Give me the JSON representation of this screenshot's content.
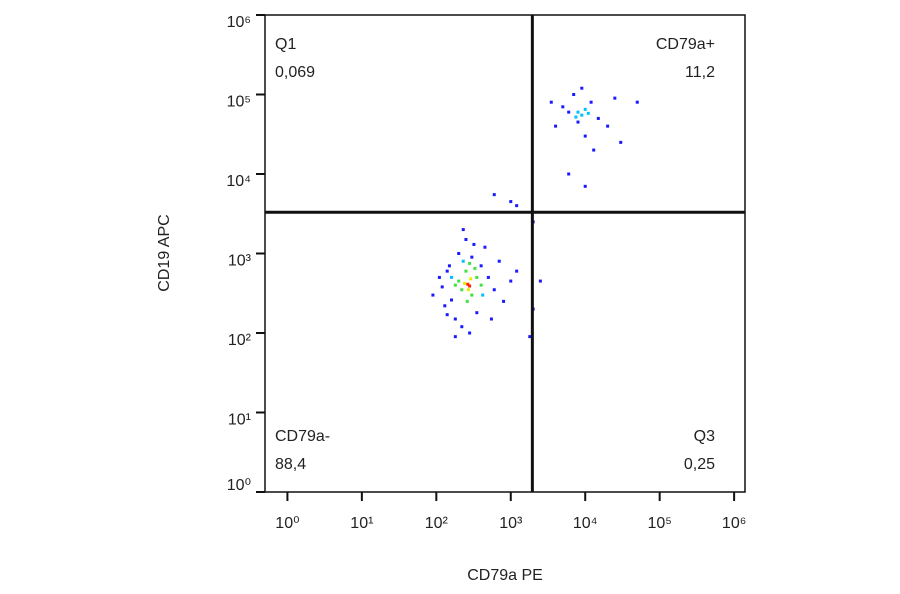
{
  "chart_data": {
    "type": "scatter",
    "xlabel": "CD79a PE",
    "ylabel": "CD19 APC",
    "xscale": "log",
    "yscale": "log",
    "xlim": [
      0.5,
      1400000
    ],
    "ylim": [
      1,
      1000000
    ],
    "xticks": [
      {
        "value": 1,
        "label": "10⁰"
      },
      {
        "value": 10,
        "label": "10¹"
      },
      {
        "value": 100,
        "label": "10²"
      },
      {
        "value": 1000,
        "label": "10³"
      },
      {
        "value": 10000,
        "label": "10⁴"
      },
      {
        "value": 100000,
        "label": "10⁵"
      },
      {
        "value": 1000000,
        "label": "10⁶"
      }
    ],
    "yticks": [
      {
        "value": 1,
        "label": "10⁰"
      },
      {
        "value": 10,
        "label": "10¹"
      },
      {
        "value": 100,
        "label": "10²"
      },
      {
        "value": 1000,
        "label": "10³"
      },
      {
        "value": 10000,
        "label": "10⁴"
      },
      {
        "value": 100000,
        "label": "10⁵"
      },
      {
        "value": 1000000,
        "label": "10⁶"
      }
    ],
    "gate_x": 1950,
    "gate_y": 3300,
    "quadrants": [
      {
        "name": "Q1",
        "percent": "0,069",
        "corner": "top-left"
      },
      {
        "name": "CD79a+",
        "percent": "11,2",
        "corner": "top-right"
      },
      {
        "name": "CD79a-",
        "percent": "88,4",
        "corner": "bottom-left"
      },
      {
        "name": "Q3",
        "percent": "0,25",
        "corner": "bottom-right"
      }
    ],
    "series": [
      {
        "color": "#1a1aff",
        "x": [
          90,
          110,
          130,
          150,
          120,
          180,
          200,
          160,
          220,
          250,
          300,
          350,
          400,
          500,
          600,
          700,
          800,
          1000,
          1200,
          180,
          280,
          450,
          140,
          230,
          550,
          2500,
          2000,
          1800,
          140,
          320,
          6000,
          8000,
          12000,
          15000,
          10000,
          20000,
          5000,
          7000,
          25000,
          9000,
          30000,
          4000,
          13000,
          3500,
          50000,
          10000,
          6000,
          600,
          1000,
          1200,
          2000
        ],
        "y": [
          300,
          500,
          220,
          700,
          380,
          150,
          1000,
          260,
          120,
          1500,
          900,
          180,
          700,
          500,
          350,
          800,
          250,
          450,
          600,
          90,
          100,
          1200,
          600,
          2000,
          150,
          450,
          200,
          90,
          170,
          1300,
          60000,
          45000,
          80000,
          50000,
          30000,
          40000,
          70000,
          100000,
          90000,
          120000,
          25000,
          40000,
          20000,
          80000,
          80000,
          7000,
          10000,
          5500,
          4500,
          4000,
          2500
        ]
      },
      {
        "color": "#00c0ff",
        "x": [
          8000,
          9000,
          10000,
          7500,
          11000,
          160,
          420,
          230
        ],
        "y": [
          60000,
          55000,
          65000,
          52000,
          58000,
          500,
          300,
          800
        ]
      },
      {
        "color": "#40e040",
        "x": [
          200,
          250,
          300,
          220,
          350,
          280,
          180,
          400,
          260,
          330
        ],
        "y": [
          450,
          600,
          300,
          350,
          500,
          750,
          400,
          400,
          250,
          650
        ]
      },
      {
        "color": "#e8e800",
        "x": [
          240,
          290,
          270
        ],
        "y": [
          420,
          480,
          350
        ]
      },
      {
        "color": "#ff2000",
        "x": [
          265,
          280
        ],
        "y": [
          410,
          390
        ]
      }
    ]
  }
}
